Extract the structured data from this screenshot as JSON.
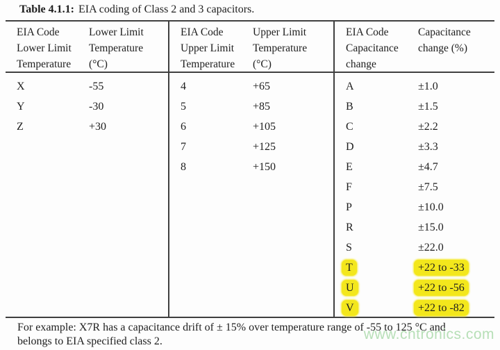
{
  "page": {
    "caption": {
      "label": "Table 4.1.1:",
      "text": "EIA coding of Class 2 and 3 capacitors."
    }
  },
  "table": {
    "groups": [
      {
        "name": "lower-limit-temperature",
        "header": {
          "col1": [
            "EIA Code",
            "Lower Limit",
            "Temperature"
          ],
          "col2": [
            "Lower Limit",
            "Temperature",
            "(°C)"
          ]
        },
        "rows": [
          {
            "code": "X",
            "value": "-55"
          },
          {
            "code": "Y",
            "value": "-30"
          },
          {
            "code": "Z",
            "value": "+30"
          }
        ]
      },
      {
        "name": "upper-limit-temperature",
        "header": {
          "col1": [
            "EIA Code",
            "Upper Limit",
            "Temperature"
          ],
          "col2": [
            "Upper Limit",
            "Temperature",
            "(°C)"
          ]
        },
        "rows": [
          {
            "code": "4",
            "value": "+65"
          },
          {
            "code": "5",
            "value": "+85"
          },
          {
            "code": "6",
            "value": "+105"
          },
          {
            "code": "7",
            "value": "+125"
          },
          {
            "code": "8",
            "value": "+150"
          }
        ]
      },
      {
        "name": "capacitance-change",
        "header": {
          "col1": [
            "EIA Code",
            "Capacitance",
            "change"
          ],
          "col2": [
            "Capacitance",
            "change (%)"
          ]
        },
        "rows": [
          {
            "code": "A",
            "value": "±1.0"
          },
          {
            "code": "B",
            "value": "±1.5"
          },
          {
            "code": "C",
            "value": "±2.2"
          },
          {
            "code": "D",
            "value": "±3.3"
          },
          {
            "code": "E",
            "value": "±4.7"
          },
          {
            "code": "F",
            "value": "±7.5"
          },
          {
            "code": "P",
            "value": "±10.0"
          },
          {
            "code": "R",
            "value": "±15.0"
          },
          {
            "code": "S",
            "value": "±22.0"
          },
          {
            "code": "T",
            "value": "+22 to -33",
            "highlighted": true
          },
          {
            "code": "U",
            "value": "+22 to -56",
            "highlighted": true
          },
          {
            "code": "V",
            "value": "+22 to -82",
            "highlighted": true
          }
        ]
      }
    ],
    "footnote_lines": [
      "For example: X7R has a capacitance drift of ± 15% over temperature range of -55 to 125 °C and",
      "belongs to EIA specified class 2."
    ]
  },
  "watermark": "www.cntronics.com",
  "colors": {
    "highlight": "#f3e71c",
    "watermark_green": "#b7dfb7",
    "rule": "#3f3f3f"
  }
}
